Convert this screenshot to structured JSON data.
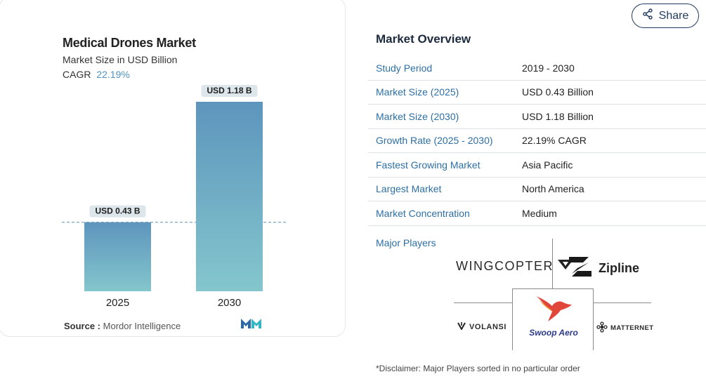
{
  "share": {
    "label": "Share"
  },
  "chart_data": {
    "type": "bar",
    "title": "Medical Drones Market",
    "subtitle": "Market Size in USD Billion",
    "cagr_label": "CAGR",
    "cagr_value": "22.19%",
    "categories": [
      "2025",
      "2030"
    ],
    "values": [
      0.43,
      1.18
    ],
    "data_labels": [
      "USD 0.43 B",
      "USD 1.18 B"
    ],
    "ylim": [
      0,
      1.18
    ],
    "grid": false,
    "reference_line": 0.43,
    "colors": {
      "bar_top": "#5d95bd",
      "bar_bottom": "#84c6cd",
      "label_bg": "#dde6ea",
      "ref_line": "#7fa9c6"
    }
  },
  "source": {
    "prefix": "Source :",
    "name": "Mordor Intelligence"
  },
  "overview": {
    "title": "Market Overview",
    "rows": [
      {
        "key": "Study Period",
        "value": "2019 - 2030"
      },
      {
        "key": "Market Size (2025)",
        "value": "USD 0.43 Billion"
      },
      {
        "key": "Market Size (2030)",
        "value": "USD 1.18 Billion"
      },
      {
        "key": "Growth Rate (2025 - 2030)",
        "value": "22.19% CAGR"
      },
      {
        "key": "Fastest Growing Market",
        "value": "Asia Pacific"
      },
      {
        "key": "Largest Market",
        "value": "North America"
      },
      {
        "key": "Market Concentration",
        "value": "Medium"
      }
    ]
  },
  "players": {
    "label": "Major Players",
    "logos": {
      "wingcopter": "WINGCOPTER",
      "zipline": "Zipline",
      "volansi": "VOLANSI",
      "swoop": "Swoop Aero",
      "matternet": "MATTERNET"
    }
  },
  "disclaimer": "*Disclaimer: Major Players sorted in no particular order",
  "accent": "#2d6fa3"
}
